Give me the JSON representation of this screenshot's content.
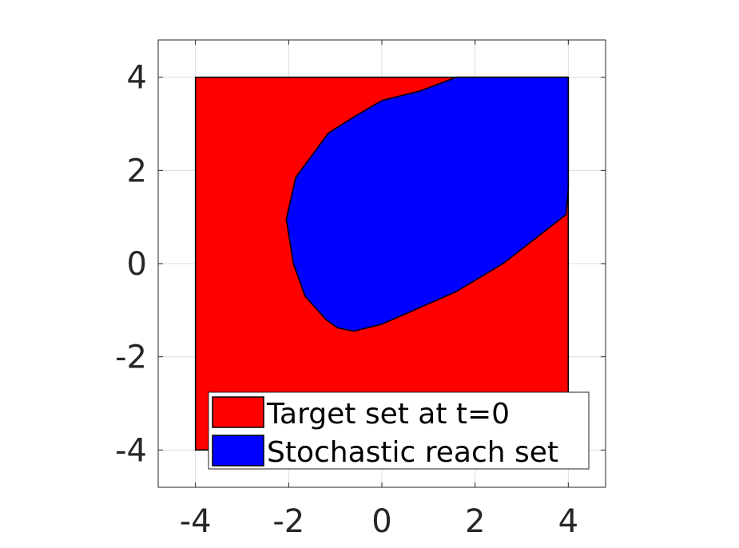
{
  "chart_data": {
    "type": "area",
    "title": "",
    "xlabel": "",
    "ylabel": "",
    "xlim": [
      -4.8,
      4.8
    ],
    "ylim": [
      -4.8,
      4.8
    ],
    "xticks": [
      -4,
      -2,
      0,
      2,
      4
    ],
    "yticks": [
      -4,
      -2,
      0,
      2,
      4
    ],
    "grid": true,
    "legend_location": "bottom-right",
    "series": [
      {
        "name": "Target set at t=0",
        "color": "#ff0000",
        "polygon": [
          [
            -4,
            -4
          ],
          [
            4,
            -4
          ],
          [
            4,
            4
          ],
          [
            -4,
            4
          ]
        ]
      },
      {
        "name": "Stochastic reach set",
        "color": "#0000ff",
        "polygon": [
          [
            1.6,
            4.0
          ],
          [
            4.0,
            4.0
          ],
          [
            4.0,
            1.6
          ],
          [
            3.95,
            1.05
          ],
          [
            2.6,
            0.0
          ],
          [
            1.6,
            -0.6
          ],
          [
            0.8,
            -0.95
          ],
          [
            0.0,
            -1.3
          ],
          [
            -0.6,
            -1.45
          ],
          [
            -0.95,
            -1.38
          ],
          [
            -1.2,
            -1.2
          ],
          [
            -1.65,
            -0.7
          ],
          [
            -1.9,
            0.0
          ],
          [
            -2.05,
            0.95
          ],
          [
            -1.85,
            1.85
          ],
          [
            -1.15,
            2.8
          ],
          [
            -0.6,
            3.15
          ],
          [
            0.0,
            3.5
          ],
          [
            0.8,
            3.7
          ]
        ]
      }
    ]
  }
}
